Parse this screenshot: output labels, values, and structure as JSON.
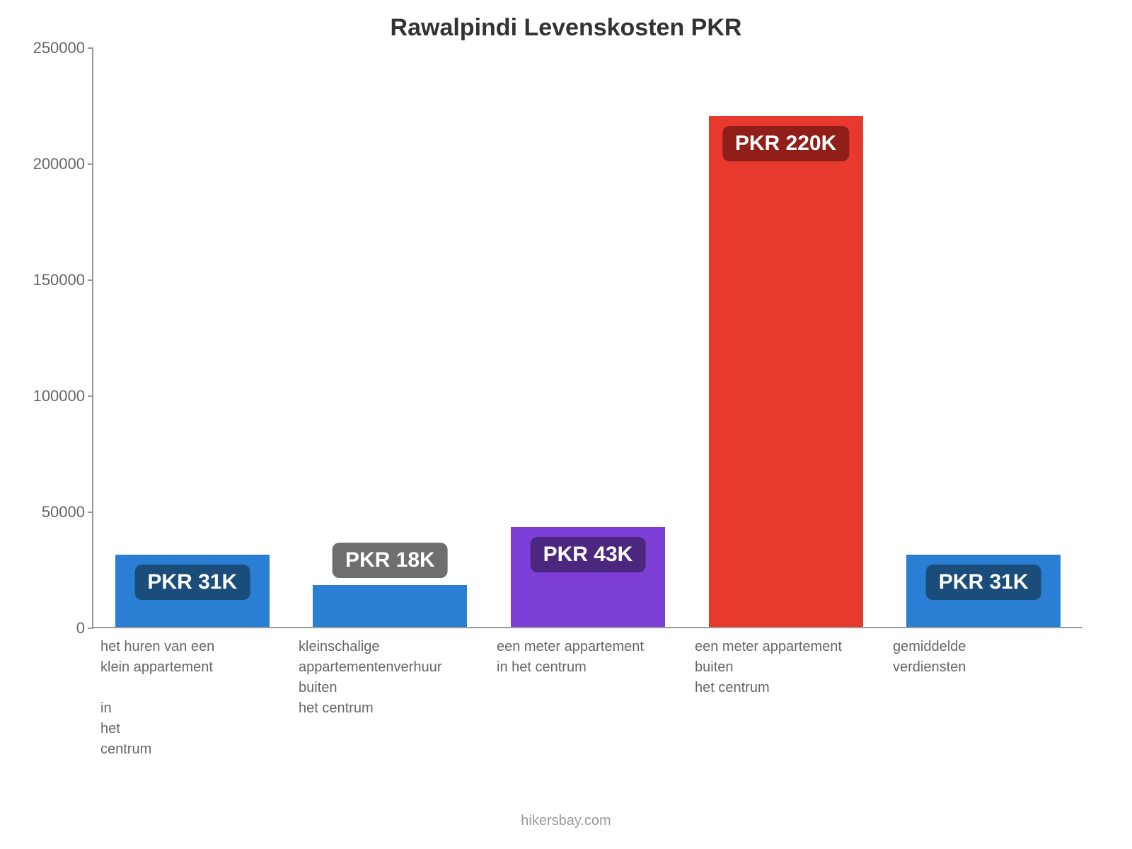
{
  "chart": {
    "type": "bar",
    "title": "Rawalpindi Levenskosten PKR",
    "title_fontsize": 34,
    "title_color": "#333333",
    "background_color": "#ffffff",
    "axis_color": "#999999",
    "label_text_color": "#666666",
    "ylim": [
      0,
      250000
    ],
    "ytick_step": 50000,
    "yticks": [
      "0",
      "50000",
      "100000",
      "150000",
      "200000",
      "250000"
    ],
    "bar_width": 0.78,
    "data_label_fontsize": 30,
    "data_label_text_color": "#ffffff",
    "xlabel_fontsize": 20,
    "categories": [
      "het huren van een\nklein appartement\n\nin\nhet\ncentrum",
      "kleinschalige\nappartementenverhuur\nbuiten\nhet centrum",
      "een meter appartement\nin het centrum",
      "een meter appartement\nbuiten\nhet centrum",
      "gemiddelde\nverdiensten"
    ],
    "values": [
      31000,
      18000,
      43000,
      220000,
      31000
    ],
    "bar_colors": [
      "#2a7fd4",
      "#2a7fd4",
      "#7e3fd6",
      "#e8392e",
      "#2a7fd4"
    ],
    "data_labels": [
      "PKR 31K",
      "PKR 18K",
      "PKR 43K",
      "PKR 220K",
      "PKR 31K"
    ],
    "data_label_bg_colors": [
      "#1a4d7a",
      "#6e6e6e",
      "#4b2780",
      "#8f1f18",
      "#1a4d7a"
    ],
    "credit": "hikersbay.com",
    "credit_color": "#999999"
  }
}
